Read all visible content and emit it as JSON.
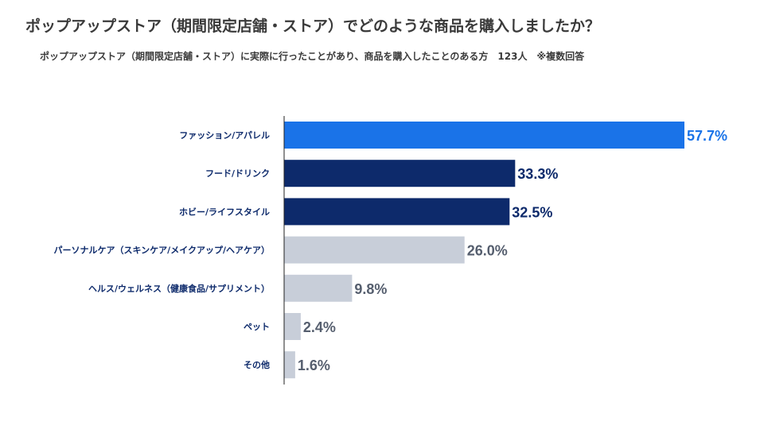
{
  "title": "ポップアップストア（期間限定店舗・ストア）でどのような商品を購入しましたか？",
  "subtitle": "ポップアップストア（期間限定店舗・ストア）に実際に行ったことがあり、商品を購入したことのある方　123人　※複数回答",
  "colors": {
    "highlight": "#1a73e8",
    "dark": "#0d2a6b",
    "light": "#c8ced9",
    "category_text": "#0d2a6b",
    "value_text_dark": "#0d2a6b",
    "value_text_light": "#555e6e"
  },
  "chart_data": {
    "type": "bar",
    "orientation": "horizontal",
    "unit": "%",
    "xlim": [
      0,
      60
    ],
    "categories": [
      "ファッション/アパレル",
      "フード/ドリンク",
      "ホビー/ライフスタイル",
      "パーソナルケア（スキンケア/メイクアップ/ヘアケア）",
      "ヘルス/ウェルネス（健康食品/サプリメント）",
      "ペット",
      "その他"
    ],
    "values": [
      57.7,
      33.3,
      32.5,
      26.0,
      9.8,
      2.4,
      1.6
    ],
    "labels": [
      "57.7%",
      "33.3%",
      "32.5%",
      "26.0%",
      "9.8%",
      "2.4%",
      "1.6%"
    ],
    "tiers": [
      "highlight",
      "dark",
      "dark",
      "light",
      "light",
      "light",
      "light"
    ]
  }
}
